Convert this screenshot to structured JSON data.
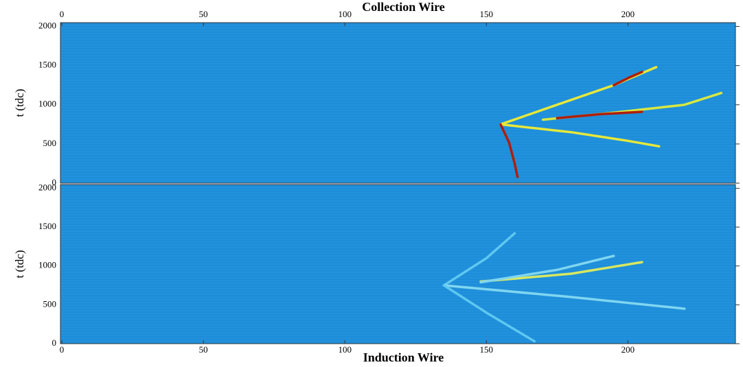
{
  "chart_data": [
    {
      "type": "line",
      "xlabel": "Collection Wire",
      "ylabel": "t (tdc)",
      "xaxis": "top",
      "xlim": [
        -0.5,
        238
      ],
      "ylim": [
        0,
        2048
      ],
      "xticks": [
        0,
        50,
        100,
        150,
        200
      ],
      "yticks": [
        0,
        500,
        1000,
        1500,
        2000
      ],
      "background": "#1f8fdb",
      "series": [
        {
          "color": "#e6e83a",
          "x": [
            155,
            175,
            195,
            210
          ],
          "values": [
            750,
            1000,
            1250,
            1480
          ]
        },
        {
          "color": "#b01e0a",
          "x": [
            195,
            200,
            205
          ],
          "values": [
            1250,
            1340,
            1420
          ]
        },
        {
          "color": "#e6e83a",
          "x": [
            155,
            180,
            200,
            211
          ],
          "values": [
            750,
            650,
            540,
            470
          ]
        },
        {
          "color": "#b01e0a",
          "x": [
            155,
            158,
            160,
            161
          ],
          "values": [
            750,
            520,
            250,
            80
          ]
        },
        {
          "color": "#d8e840",
          "x": [
            170,
            195,
            220,
            233
          ],
          "values": [
            810,
            900,
            1000,
            1150
          ]
        },
        {
          "color": "#b01e0a",
          "x": [
            175,
            190,
            205
          ],
          "values": [
            830,
            880,
            910
          ]
        }
      ]
    },
    {
      "type": "line",
      "xlabel": "Induction Wire",
      "ylabel": "t (tdc)",
      "xaxis": "bottom",
      "xlim": [
        -0.5,
        238
      ],
      "ylim": [
        0,
        2048
      ],
      "xticks": [
        0,
        50,
        100,
        150,
        200
      ],
      "yticks": [
        0,
        500,
        1000,
        1500,
        2000
      ],
      "background": "#1f8fdb",
      "series": [
        {
          "color": "#5ec8f0",
          "x": [
            135,
            150,
            160
          ],
          "values": [
            750,
            1100,
            1420
          ]
        },
        {
          "color": "#7fd6f0",
          "x": [
            135,
            180,
            220
          ],
          "values": [
            750,
            600,
            450
          ]
        },
        {
          "color": "#5ec8f0",
          "x": [
            135,
            150,
            167
          ],
          "values": [
            750,
            400,
            30
          ]
        },
        {
          "color": "#d8e860",
          "x": [
            148,
            180,
            205
          ],
          "values": [
            800,
            900,
            1050
          ]
        },
        {
          "color": "#7fd6f0",
          "x": [
            148,
            175,
            195
          ],
          "values": [
            790,
            950,
            1130
          ]
        }
      ]
    }
  ]
}
